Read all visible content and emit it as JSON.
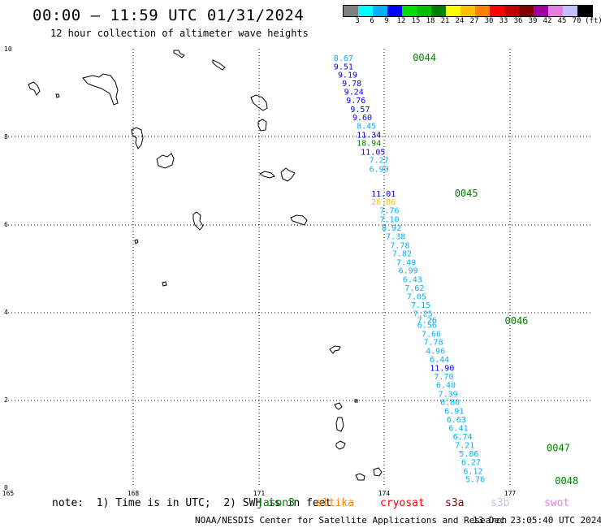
{
  "header": {
    "title": "00:00 – 11:59 UTC 01/31/2024",
    "subtitle": "12 hour collection of altimeter wave heights"
  },
  "colorbar": {
    "colors": [
      "#808080",
      "#00ffff",
      "#00b0ff",
      "#0000ff",
      "#00e000",
      "#00c000",
      "#008000",
      "#ffff00",
      "#ffc000",
      "#ff8000",
      "#ff0000",
      "#c00000",
      "#800000",
      "#a000a0",
      "#e080e0",
      "#c0c0ff",
      "#000000"
    ],
    "labels": [
      "3",
      "6",
      "9",
      "12",
      "15",
      "18",
      "21",
      "24",
      "27",
      "30",
      "33",
      "36",
      "39",
      "42",
      "45",
      "70",
      "(ft)"
    ]
  },
  "map": {
    "lat_labels": [
      "10",
      "8",
      "6",
      "4",
      "2",
      "0"
    ],
    "lon_labels": [
      "165",
      "168",
      "171",
      "174",
      "177"
    ]
  },
  "chart_data": {
    "type": "scatter",
    "x_axis_ticks": [
      "165",
      "168",
      "171",
      "174",
      "177"
    ],
    "y_axis_ticks": [
      "0",
      "2",
      "4",
      "6",
      "8",
      "10"
    ],
    "time_labels": [
      {
        "label": "0044",
        "lat": 9.8,
        "lon": 173.8
      },
      {
        "label": "0045",
        "lat": 6.7,
        "lon": 174.8
      },
      {
        "label": "0046",
        "lat": 3.8,
        "lon": 176.0
      },
      {
        "label": "0047",
        "lat": 0.9,
        "lon": 177.0
      },
      {
        "label": "0048",
        "lat": 0.15,
        "lon": 177.2
      }
    ],
    "points": [
      {
        "v": "8.67",
        "lat": 9.8,
        "lon": 172.2,
        "c": "#00b0ff"
      },
      {
        "v": "9.51",
        "lat": 9.6,
        "lon": 172.2,
        "c": "#0000ff"
      },
      {
        "v": "9.19",
        "lat": 9.42,
        "lon": 172.3,
        "c": "#0000ff"
      },
      {
        "v": "9.78",
        "lat": 9.22,
        "lon": 172.4,
        "c": "#0000ff"
      },
      {
        "v": "9.24",
        "lat": 9.03,
        "lon": 172.45,
        "c": "#0000ff"
      },
      {
        "v": "9.76",
        "lat": 8.83,
        "lon": 172.5,
        "c": "#0000ff"
      },
      {
        "v": "9.57",
        "lat": 8.63,
        "lon": 172.6,
        "c": "#0000ff"
      },
      {
        "v": "9.60",
        "lat": 8.44,
        "lon": 172.65,
        "c": "#0000ff"
      },
      {
        "v": "8.45",
        "lat": 8.25,
        "lon": 172.75,
        "c": "#00b0ff"
      },
      {
        "v": "11.34",
        "lat": 8.05,
        "lon": 172.75,
        "c": "#0000ff"
      },
      {
        "v": "18.94",
        "lat": 7.86,
        "lon": 172.75,
        "c": "#008000"
      },
      {
        "v": "11.05",
        "lat": 7.66,
        "lon": 172.85,
        "c": "#0000ff"
      },
      {
        "v": "7.27",
        "lat": 7.47,
        "lon": 173.05,
        "c": "#00b0ff"
      },
      {
        "v": "6.90",
        "lat": 7.27,
        "lon": 173.05,
        "c": "#00b0ff"
      },
      {
        "v": "11.01",
        "lat": 6.7,
        "lon": 173.1,
        "c": "#0000ff"
      },
      {
        "v": "26.86",
        "lat": 6.52,
        "lon": 173.1,
        "c": "#ffc000"
      },
      {
        "v": "7.76",
        "lat": 6.32,
        "lon": 173.3,
        "c": "#00b0ff"
      },
      {
        "v": "7.10",
        "lat": 6.12,
        "lon": 173.3,
        "c": "#00b0ff"
      },
      {
        "v": "8.92",
        "lat": 5.93,
        "lon": 173.35,
        "c": "#00b0ff"
      },
      {
        "v": "7.38",
        "lat": 5.73,
        "lon": 173.45,
        "c": "#00b0ff"
      },
      {
        "v": "7.78",
        "lat": 5.53,
        "lon": 173.55,
        "c": "#00b0ff"
      },
      {
        "v": "7.82",
        "lat": 5.34,
        "lon": 173.6,
        "c": "#00b0ff"
      },
      {
        "v": "7.49",
        "lat": 5.14,
        "lon": 173.7,
        "c": "#00b0ff"
      },
      {
        "v": "6.99",
        "lat": 4.95,
        "lon": 173.75,
        "c": "#00b0ff"
      },
      {
        "v": "6.43",
        "lat": 4.75,
        "lon": 173.85,
        "c": "#00b0ff"
      },
      {
        "v": "7.62",
        "lat": 4.56,
        "lon": 173.9,
        "c": "#00b0ff"
      },
      {
        "v": "7.05",
        "lat": 4.36,
        "lon": 173.95,
        "c": "#00b0ff"
      },
      {
        "v": "7.15",
        "lat": 4.17,
        "lon": 174.05,
        "c": "#00b0ff"
      },
      {
        "v": "7.25",
        "lat": 3.97,
        "lon": 174.1,
        "c": "#00b0ff"
      },
      {
        "v": "7.26",
        "lat": 3.82,
        "lon": 174.2,
        "c": "#00b0ff"
      },
      {
        "v": "6.56",
        "lat": 3.71,
        "lon": 174.2,
        "c": "#00b0ff"
      },
      {
        "v": "7.66",
        "lat": 3.51,
        "lon": 174.3,
        "c": "#00b0ff"
      },
      {
        "v": "7.78",
        "lat": 3.32,
        "lon": 174.35,
        "c": "#00b0ff"
      },
      {
        "v": "4.96",
        "lat": 3.12,
        "lon": 174.4,
        "c": "#00b0ff"
      },
      {
        "v": "6.44",
        "lat": 2.93,
        "lon": 174.5,
        "c": "#00b0ff"
      },
      {
        "v": "11.90",
        "lat": 2.73,
        "lon": 174.5,
        "c": "#0000ff"
      },
      {
        "v": "7.70",
        "lat": 2.54,
        "lon": 174.6,
        "c": "#00b0ff"
      },
      {
        "v": "6.40",
        "lat": 2.34,
        "lon": 174.65,
        "c": "#00b0ff"
      },
      {
        "v": "7.39",
        "lat": 2.14,
        "lon": 174.7,
        "c": "#00b0ff"
      },
      {
        "v": "6.80",
        "lat": 1.95,
        "lon": 174.75,
        "c": "#00b0ff"
      },
      {
        "v": "6.91",
        "lat": 1.75,
        "lon": 174.85,
        "c": "#00b0ff"
      },
      {
        "v": "6.63",
        "lat": 1.56,
        "lon": 174.9,
        "c": "#00b0ff"
      },
      {
        "v": "6.41",
        "lat": 1.36,
        "lon": 174.95,
        "c": "#00b0ff"
      },
      {
        "v": "6.74",
        "lat": 1.17,
        "lon": 175.05,
        "c": "#00b0ff"
      },
      {
        "v": "7.21",
        "lat": 0.97,
        "lon": 175.1,
        "c": "#00b0ff"
      },
      {
        "v": "5.86",
        "lat": 0.78,
        "lon": 175.2,
        "c": "#00b0ff"
      },
      {
        "v": "6.27",
        "lat": 0.58,
        "lon": 175.25,
        "c": "#00b0ff"
      },
      {
        "v": "6.12",
        "lat": 0.38,
        "lon": 175.3,
        "c": "#00b0ff"
      },
      {
        "v": "5.76",
        "lat": 0.19,
        "lon": 175.35,
        "c": "#00b0ff"
      }
    ]
  },
  "footer": {
    "note": "note:  1) Time is in UTC;  2) SWH is in feet",
    "missions": [
      {
        "name": "jason3",
        "color": "#008000"
      },
      {
        "name": "altika",
        "color": "#ff8000"
      },
      {
        "name": "cryosat",
        "color": "#ff0000"
      },
      {
        "name": "s3a",
        "color": "#800000"
      },
      {
        "name": "s3b",
        "color": "#c0c0ff"
      },
      {
        "name": "swot",
        "color": "#e080e0"
      }
    ],
    "credit": "NOAA/NESDIS Center for Satellite Applications and Research",
    "generated": "13 Dec 23:05:40 UTC 2024"
  }
}
